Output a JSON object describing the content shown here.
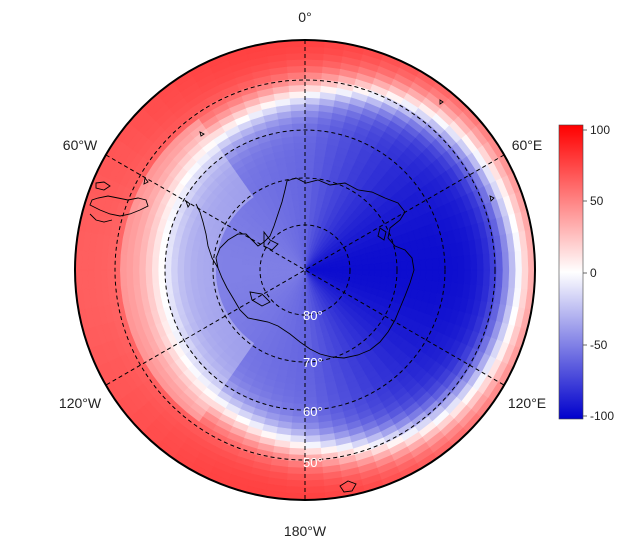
{
  "map": {
    "projection": "south-polar-stereographic",
    "longitude_labels": {
      "top": "0°",
      "upper_left": "60°W",
      "upper_right": "60°E",
      "lower_left": "120°W",
      "lower_right": "120°E",
      "bottom": "180°W"
    },
    "latitude_labels": [
      "80°",
      "70°",
      "60°",
      "50°"
    ],
    "colors": {
      "negative": "#0000cc",
      "zero": "#ffffff",
      "positive": "#ff1a1a",
      "graticule": "#000000",
      "coastline": "#000000"
    }
  },
  "colorbar": {
    "min": -100,
    "max": 100,
    "ticks": [
      "100",
      "50",
      "0",
      "-50",
      "-100"
    ]
  }
}
